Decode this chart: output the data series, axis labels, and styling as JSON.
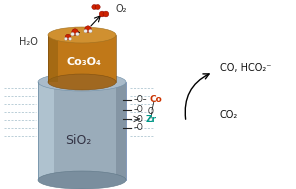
{
  "background_color": "#ffffff",
  "sio2_body_color": "#9aacba",
  "sio2_left_highlight": "#b8ccd8",
  "sio2_right_shadow": "#708090",
  "sio2_top_color": "#aabbca",
  "sio2_bot_color": "#7a8e9e",
  "co3o4_body_color": "#c07818",
  "co3o4_left_shadow": "#906010",
  "co3o4_top_color": "#d09030",
  "co3o4_bot_color": "#a06820",
  "text_sio2": "SiO₂",
  "text_co3o4": "Co₃O₄",
  "text_h2o": "H₂O",
  "text_o2": "O₂",
  "text_co2": "CO₂",
  "text_products": "CO, HCO₂⁻",
  "text_co_label": "Co",
  "text_zr_label": "Zr",
  "water_red": "#cc2200",
  "co_color": "#cc3300",
  "zr_color": "#009988",
  "arrow_color": "#111111",
  "dash_color": "#8aacbc",
  "figsize": [
    2.96,
    1.89
  ],
  "dpi": 100
}
